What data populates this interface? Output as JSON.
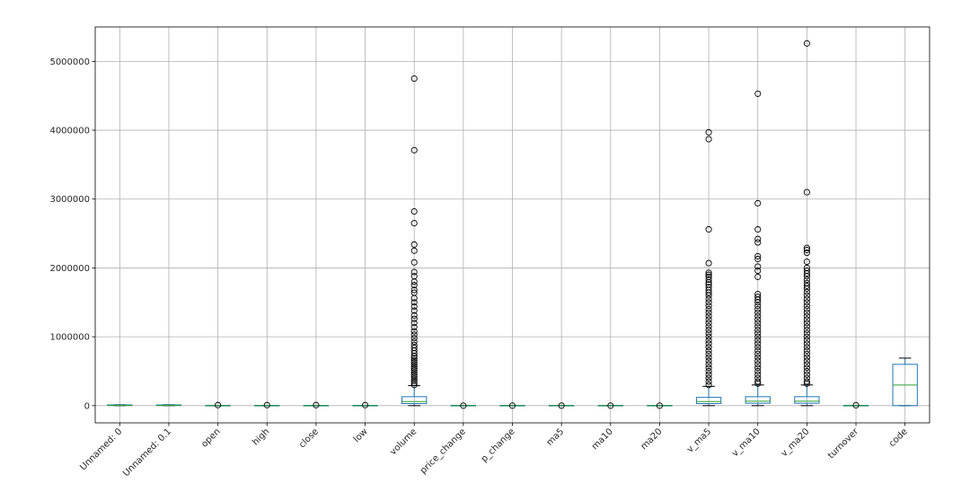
{
  "chart_data": {
    "type": "boxplot",
    "title": "",
    "xlabel": "",
    "ylabel": "",
    "grid": true,
    "ylim": [
      -250000,
      5500000
    ],
    "yticks": [
      0,
      1000000,
      2000000,
      3000000,
      4000000,
      5000000
    ],
    "ytick_labels": [
      "0",
      "1000000",
      "2000000",
      "3000000",
      "4000000",
      "5000000"
    ],
    "categories": [
      "Unnamed: 0",
      "Unnamed: 0.1",
      "open",
      "high",
      "close",
      "low",
      "volume",
      "price_change",
      "p_change",
      "ma5",
      "ma10",
      "ma20",
      "v_ma5",
      "v_ma10",
      "v_ma20",
      "turnover",
      "code"
    ],
    "series": [
      {
        "name": "Unnamed: 0",
        "min": 0,
        "q1": 0,
        "median": 3000,
        "q3": 7000,
        "max": 13000,
        "outliers": []
      },
      {
        "name": "Unnamed: 0.1",
        "min": 0,
        "q1": 0,
        "median": 3000,
        "q3": 7000,
        "max": 13000,
        "outliers": []
      },
      {
        "name": "open",
        "min": 0,
        "q1": 5,
        "median": 10,
        "q3": 20,
        "max": 40,
        "outliers": [
          8000
        ]
      },
      {
        "name": "high",
        "min": 0,
        "q1": 5,
        "median": 10,
        "q3": 20,
        "max": 40,
        "outliers": [
          8000
        ]
      },
      {
        "name": "close",
        "min": 0,
        "q1": 5,
        "median": 10,
        "q3": 20,
        "max": 40,
        "outliers": [
          8000
        ]
      },
      {
        "name": "low",
        "min": 0,
        "q1": 5,
        "median": 10,
        "q3": 20,
        "max": 40,
        "outliers": [
          8000
        ]
      },
      {
        "name": "volume",
        "min": 0,
        "q1": 30000,
        "median": 60000,
        "q3": 130000,
        "max": 290000,
        "outliers": [
          4750000,
          3710000,
          2820000,
          2650000,
          2340000,
          2250000,
          2080000,
          1940000,
          1880000,
          1800000,
          1750000,
          1680000,
          1640000,
          1560000,
          1500000,
          1440000,
          1380000,
          1310000,
          1260000,
          1200000,
          1140000,
          1080000,
          1030000,
          980000,
          930000,
          880000,
          840000,
          800000,
          760000,
          720000,
          690000,
          660000,
          630000,
          600000,
          570000,
          540000,
          510000,
          480000,
          450000,
          420000,
          390000,
          360000,
          330000,
          300000
        ]
      },
      {
        "name": "price_change",
        "min": -1,
        "q1": -0.2,
        "median": 0,
        "q3": 0.2,
        "max": 1,
        "outliers": [
          0
        ]
      },
      {
        "name": "p_change",
        "min": -5,
        "q1": -1,
        "median": 0,
        "q3": 1,
        "max": 5,
        "outliers": [
          0
        ]
      },
      {
        "name": "ma5",
        "min": 0,
        "q1": 5,
        "median": 10,
        "q3": 20,
        "max": 40,
        "outliers": [
          0
        ]
      },
      {
        "name": "ma10",
        "min": 0,
        "q1": 5,
        "median": 10,
        "q3": 20,
        "max": 40,
        "outliers": [
          0
        ]
      },
      {
        "name": "ma20",
        "min": 0,
        "q1": 5,
        "median": 10,
        "q3": 20,
        "max": 40,
        "outliers": [
          0
        ]
      },
      {
        "name": "v_ma5",
        "min": 0,
        "q1": 30000,
        "median": 60000,
        "q3": 120000,
        "max": 280000,
        "outliers": [
          3970000,
          3870000,
          2560000,
          2070000,
          1930000,
          1900000,
          1870000,
          1830000,
          1790000,
          1760000,
          1720000,
          1680000,
          1640000,
          1600000,
          1550000,
          1500000,
          1450000,
          1400000,
          1350000,
          1300000,
          1250000,
          1200000,
          1150000,
          1100000,
          1050000,
          1000000,
          950000,
          900000,
          850000,
          800000,
          750000,
          700000,
          650000,
          600000,
          550000,
          500000,
          450000,
          400000,
          350000,
          300000
        ]
      },
      {
        "name": "v_ma10",
        "min": 0,
        "q1": 35000,
        "median": 65000,
        "q3": 130000,
        "max": 300000,
        "outliers": [
          4530000,
          2940000,
          2560000,
          2420000,
          2370000,
          2170000,
          2130000,
          2020000,
          1960000,
          1870000,
          1620000,
          1580000,
          1540000,
          1500000,
          1450000,
          1400000,
          1350000,
          1300000,
          1250000,
          1200000,
          1150000,
          1100000,
          1050000,
          1000000,
          950000,
          900000,
          850000,
          800000,
          750000,
          700000,
          650000,
          600000,
          550000,
          500000,
          450000,
          400000,
          350000,
          320000
        ]
      },
      {
        "name": "v_ma20",
        "min": 0,
        "q1": 35000,
        "median": 65000,
        "q3": 130000,
        "max": 300000,
        "outliers": [
          5260000,
          3100000,
          2290000,
          2260000,
          2220000,
          2090000,
          2000000,
          1960000,
          1920000,
          1880000,
          1830000,
          1780000,
          1740000,
          1700000,
          1650000,
          1600000,
          1550000,
          1500000,
          1450000,
          1400000,
          1350000,
          1300000,
          1250000,
          1200000,
          1150000,
          1100000,
          1050000,
          1000000,
          950000,
          900000,
          850000,
          800000,
          750000,
          700000,
          650000,
          600000,
          550000,
          500000,
          450000,
          400000,
          350000,
          320000
        ]
      },
      {
        "name": "turnover",
        "min": 0,
        "q1": 1,
        "median": 2,
        "q3": 4,
        "max": 8,
        "outliers": [
          6000
        ]
      },
      {
        "name": "code",
        "min": 0,
        "q1": 0,
        "median": 300000,
        "q3": 600000,
        "max": 690000,
        "outliers": []
      }
    ],
    "colors": {
      "box": "#1f77b4",
      "median": "#2ca02c",
      "outlier": "#000000",
      "grid": "#b0b0b0",
      "axis": "#000000"
    }
  }
}
